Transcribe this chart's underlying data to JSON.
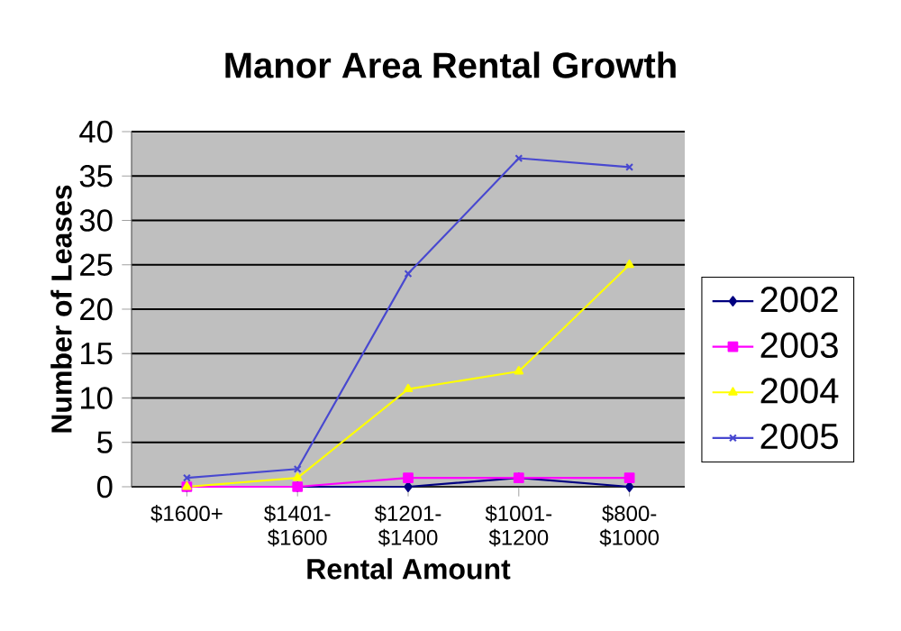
{
  "chart_data": {
    "type": "line",
    "title": "Manor Area Rental Growth",
    "xlabel": "Rental Amount",
    "ylabel": "Number of Leases",
    "categories": [
      "$1600+",
      "$1401- $1600",
      "$1201- $1400",
      "$1001- $1200",
      "$800- $1000"
    ],
    "series": [
      {
        "name": "2002",
        "color": "#000080",
        "marker": "diamond",
        "values": [
          0,
          0,
          0,
          1,
          0
        ]
      },
      {
        "name": "2003",
        "color": "#ff00ff",
        "marker": "square",
        "values": [
          0,
          0,
          1,
          1,
          1
        ]
      },
      {
        "name": "2004",
        "color": "#ffff00",
        "marker": "triangle",
        "values": [
          0,
          1,
          11,
          13,
          25
        ]
      },
      {
        "name": "2005",
        "color": "#4848d0",
        "marker": "cross",
        "values": [
          1,
          2,
          24,
          37,
          36
        ]
      }
    ],
    "ylim": [
      0,
      40
    ],
    "yticks": [
      0,
      5,
      10,
      15,
      20,
      25,
      30,
      35,
      40
    ],
    "grid": "y",
    "legend": "right"
  }
}
